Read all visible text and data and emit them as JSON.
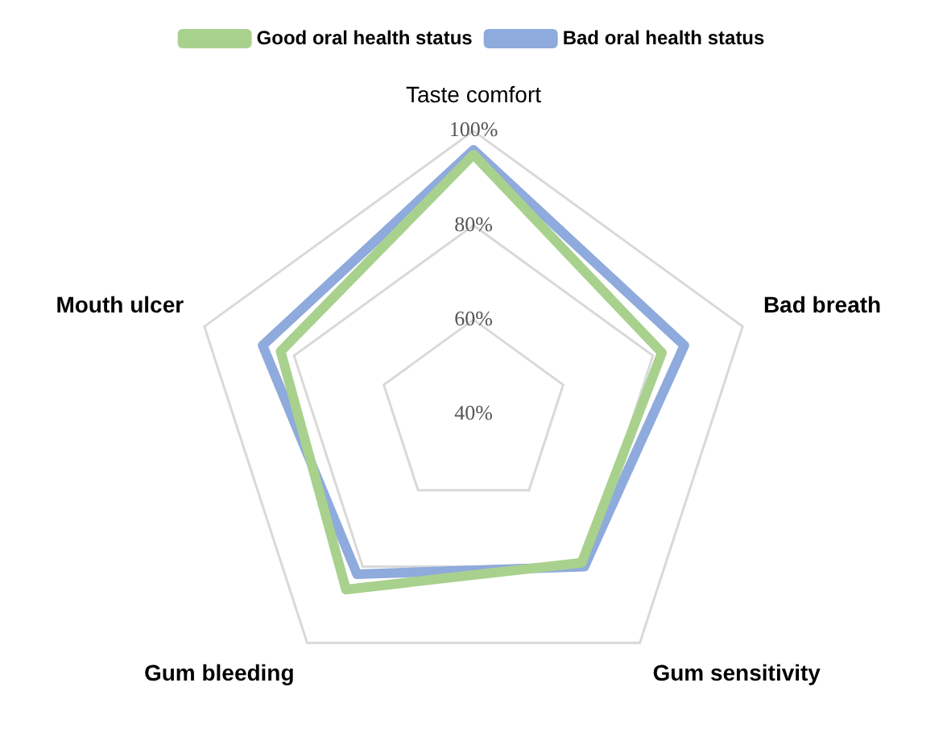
{
  "chart_data": {
    "type": "radar",
    "categories": [
      "Taste comfort",
      "Bad breath",
      "Gum sensitivity",
      "Gum bleeding",
      "Mouth ulcer"
    ],
    "series": [
      {
        "name": "Good oral health status",
        "color": "#a9d18e",
        "values": [
          95,
          82,
          79,
          86,
          83
        ]
      },
      {
        "name": "Bad oral health status",
        "color": "#8faadc",
        "values": [
          96,
          87,
          80,
          82,
          87
        ]
      }
    ],
    "ylim": [
      40,
      100
    ],
    "yticks": [
      {
        "value": 40,
        "label": "40%"
      },
      {
        "value": 60,
        "label": "60%"
      },
      {
        "value": 80,
        "label": "80%"
      },
      {
        "value": 100,
        "label": "100%"
      }
    ],
    "grid": true,
    "legend": "top",
    "marker": "none",
    "line_style": "solid"
  }
}
